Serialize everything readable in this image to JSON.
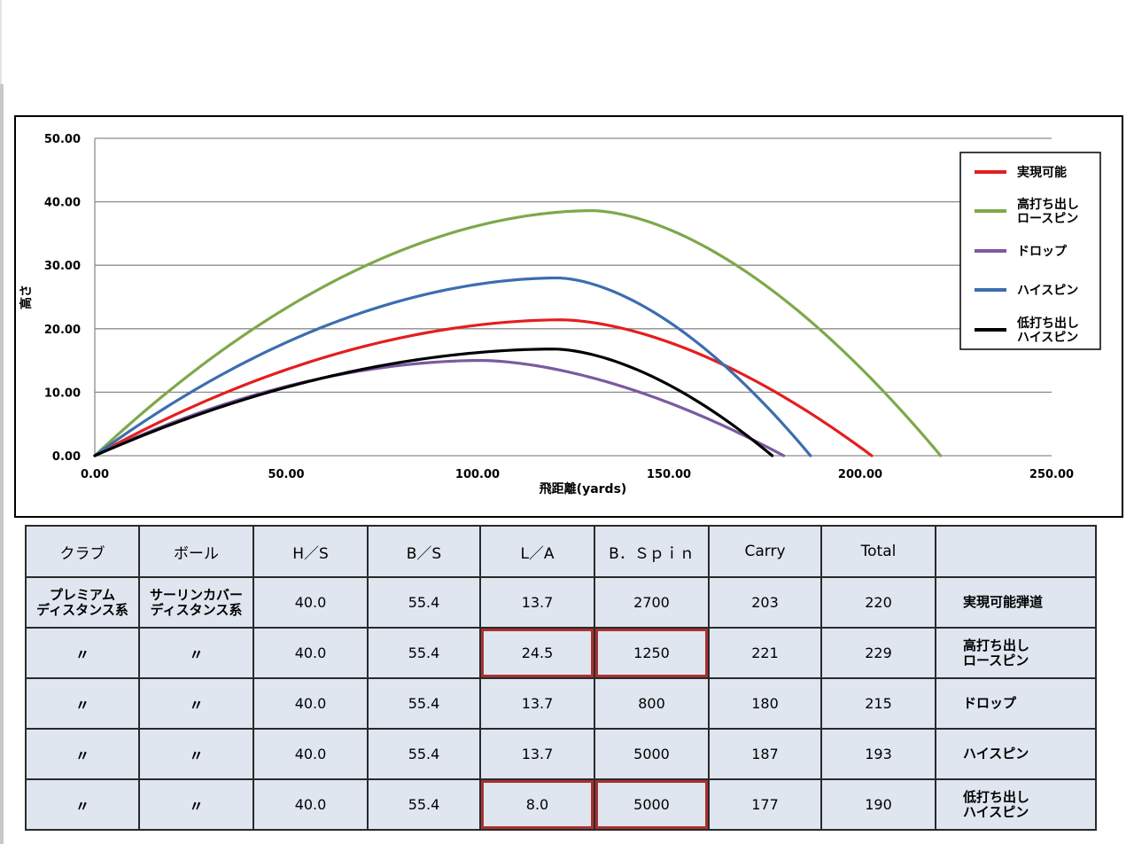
{
  "chart_data": {
    "type": "line",
    "xlabel": "飛距離(yards)",
    "ylabel": "高さ",
    "xlim": [
      0,
      250
    ],
    "ylim": [
      0,
      50
    ],
    "x_ticks": [
      "0.00",
      "50.00",
      "100.00",
      "150.00",
      "200.00",
      "250.00"
    ],
    "y_ticks": [
      "0.00",
      "10.00",
      "20.00",
      "30.00",
      "40.00",
      "50.00"
    ],
    "grid": "horizontal",
    "legend_position": "right",
    "series": [
      {
        "name": "実現可能",
        "color": "#e41e1e",
        "landing_x": 203,
        "peak_x": 122,
        "peak_y": 21.4
      },
      {
        "name": "高打ち出し\nロースピン",
        "color": "#7ea84a",
        "landing_x": 221,
        "peak_x": 130,
        "peak_y": 38.6
      },
      {
        "name": "ドロップ",
        "color": "#7b5aa0",
        "landing_x": 180,
        "peak_x": 101,
        "peak_y": 15.0
      },
      {
        "name": "ハイスピン",
        "color": "#3c6db0",
        "landing_x": 187,
        "peak_x": 121,
        "peak_y": 28.0
      },
      {
        "name": "低打ち出し\nハイスピン",
        "color": "#000000",
        "landing_x": 177,
        "peak_x": 120,
        "peak_y": 16.8
      }
    ]
  },
  "table": {
    "headers": [
      "クラブ",
      "ボール",
      "H／S",
      "B／S",
      "L／A",
      "B．Ｓｐｉｎ",
      "Carry",
      "Total",
      ""
    ],
    "rows": [
      {
        "club": "プレミアム\nディスタンス系",
        "ball": "サーリンカバー\nディスタンス系",
        "hs": "40.0",
        "bs": "55.4",
        "la": "13.7",
        "spin": "2700",
        "carry": "203",
        "total": "220",
        "name": "実現可能弾道"
      },
      {
        "club": "〃",
        "ball": "〃",
        "hs": "40.0",
        "bs": "55.4",
        "la": "24.5",
        "spin": "1250",
        "carry": "221",
        "total": "229",
        "name": "高打ち出し\nロースピン"
      },
      {
        "club": "〃",
        "ball": "〃",
        "hs": "40.0",
        "bs": "55.4",
        "la": "13.7",
        "spin": "800",
        "carry": "180",
        "total": "215",
        "name": "ドロップ"
      },
      {
        "club": "〃",
        "ball": "〃",
        "hs": "40.0",
        "bs": "55.4",
        "la": "13.7",
        "spin": "5000",
        "carry": "187",
        "total": "193",
        "name": "ハイスピン"
      },
      {
        "club": "〃",
        "ball": "〃",
        "hs": "40.0",
        "bs": "55.4",
        "la": "8.0",
        "spin": "5000",
        "carry": "177",
        "total": "190",
        "name": "低打ち出し\nハイスピン"
      }
    ]
  }
}
